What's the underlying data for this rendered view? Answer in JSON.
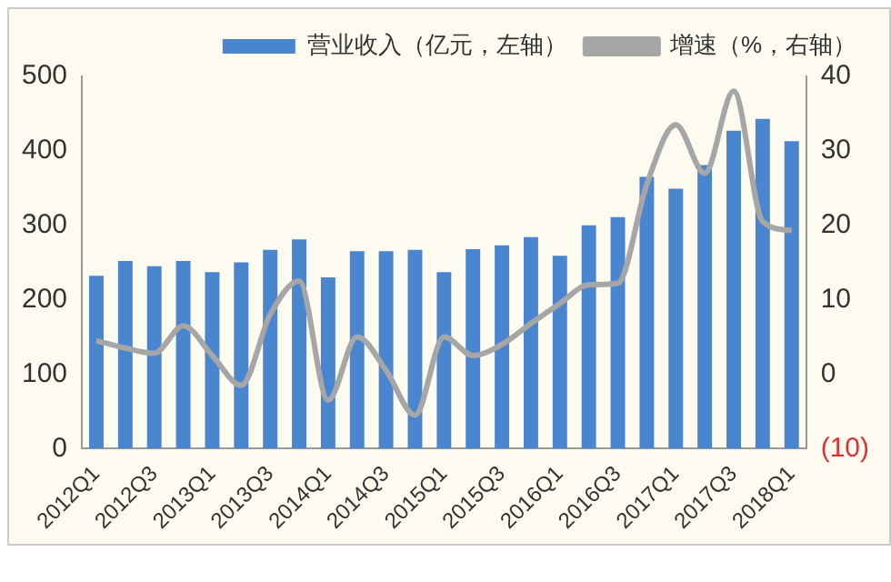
{
  "chart_data": {
    "type": "bar",
    "categories": [
      "2012Q1",
      null,
      "2012Q3",
      null,
      "2013Q1",
      null,
      "2013Q3",
      null,
      "2014Q1",
      null,
      "2014Q3",
      null,
      "2015Q1",
      null,
      "2015Q3",
      null,
      "2016Q1",
      null,
      "2016Q3",
      null,
      "2017Q1",
      null,
      "2017Q3",
      null,
      "2018Q1"
    ],
    "series": [
      {
        "name": "营业收入（亿元，左轴）",
        "color": "#4a86d0",
        "values": [
          232,
          252,
          245,
          252,
          237,
          250,
          267,
          281,
          230,
          265,
          265,
          267,
          237,
          268,
          273,
          284,
          259,
          300,
          311,
          365,
          349,
          381,
          427,
          443,
          413
        ]
      },
      {
        "name": "增速（%，右轴）",
        "type": "line",
        "axis": "y2",
        "color": "#a6a6a6",
        "values": [
          4.5,
          3.5,
          2.8,
          6.5,
          2.5,
          -1.5,
          8,
          12.5,
          -3.5,
          5,
          0.5,
          -5.5,
          5,
          2.5,
          4,
          6.8,
          9.5,
          12,
          12.2,
          25.5,
          33.5,
          27,
          38,
          20.5,
          19.3
        ]
      }
    ],
    "ylim": [
      0,
      500
    ],
    "yticks": [
      0,
      100,
      200,
      300,
      400,
      500
    ],
    "y2lim": [
      -10,
      40
    ],
    "y2ticks": [
      {
        "value": -10,
        "label": "(10)"
      },
      0,
      10,
      20,
      30,
      40
    ],
    "grid": false,
    "legend": "top",
    "marker": "none",
    "line_style": "solid"
  }
}
